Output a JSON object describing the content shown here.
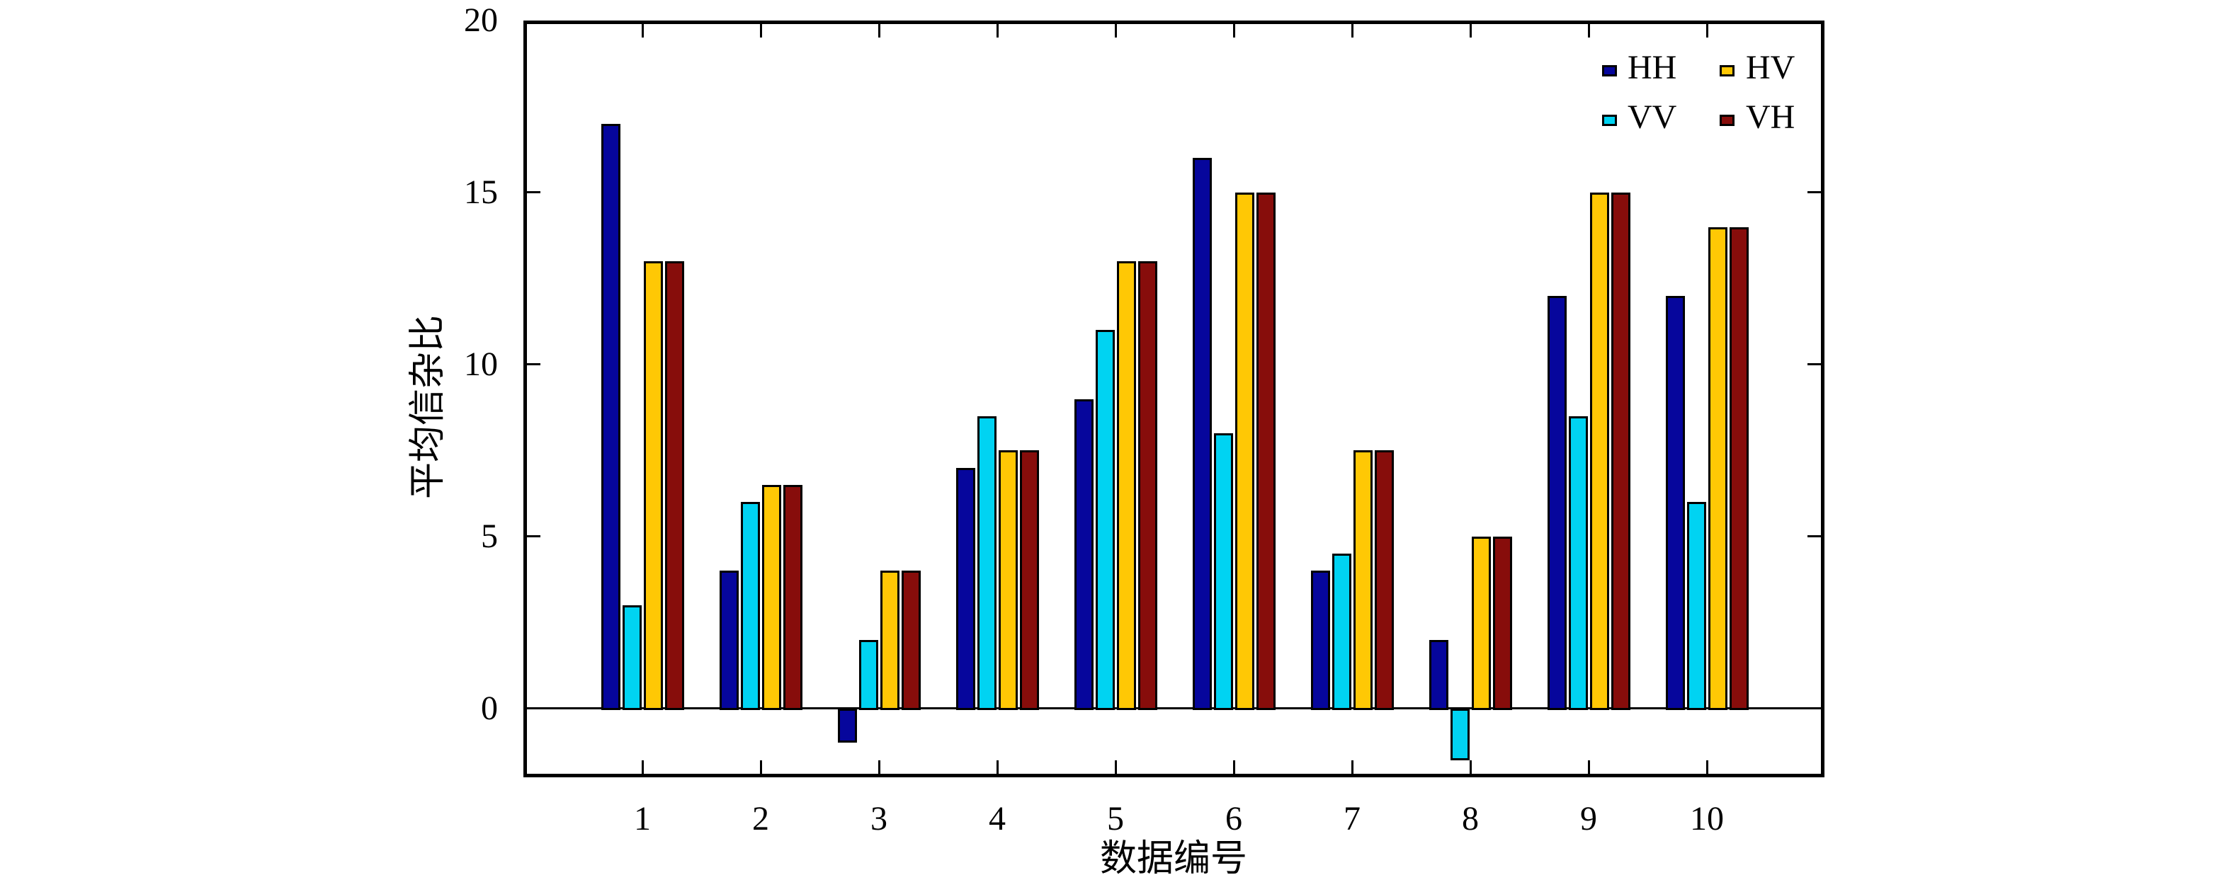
{
  "chart_data": {
    "type": "bar",
    "title": "",
    "xlabel": "数据编号",
    "ylabel": "平均信杂比",
    "categories": [
      "1",
      "2",
      "3",
      "4",
      "5",
      "6",
      "7",
      "8",
      "9",
      "10"
    ],
    "series": [
      {
        "name": "HH",
        "color": "#06069C",
        "values": [
          17,
          4,
          -1,
          7,
          9,
          16,
          4,
          2,
          12,
          12
        ]
      },
      {
        "name": "VV",
        "color": "#00D3F2",
        "values": [
          3,
          6,
          2,
          8.5,
          11,
          8,
          4.5,
          -1.5,
          8.5,
          6
        ]
      },
      {
        "name": "HV",
        "color": "#FFC805",
        "values": [
          13,
          6.5,
          4,
          7.5,
          13,
          15,
          7.5,
          5,
          15,
          14
        ]
      },
      {
        "name": "VH",
        "color": "#870D0B",
        "values": [
          13,
          6.5,
          4,
          7.5,
          13,
          15,
          7.5,
          5,
          15,
          14
        ]
      }
    ],
    "bar_order": [
      "HH",
      "VV",
      "HV",
      "VH"
    ],
    "ylim": [
      -2,
      20
    ],
    "yticks": [
      0,
      5,
      10,
      15,
      20
    ],
    "grid": false,
    "legend_position": "top-right",
    "legend": {
      "columns": 2,
      "items": [
        {
          "label": "HH",
          "color": "#06069C"
        },
        {
          "label": "HV",
          "color": "#FFC805"
        },
        {
          "label": "VV",
          "color": "#00D3F2"
        },
        {
          "label": "VH",
          "color": "#870D0B"
        }
      ]
    },
    "frame_color": "#000000",
    "background_color": "#ffffff"
  }
}
